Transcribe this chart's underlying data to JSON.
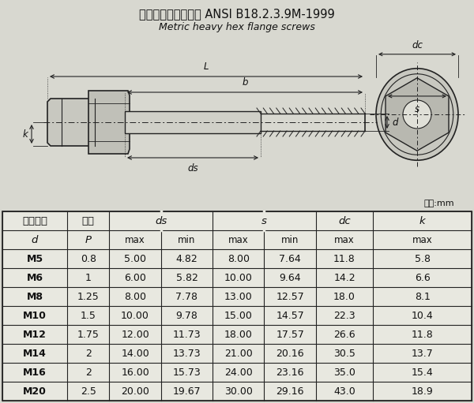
{
  "title_zh": "重型六角头法兰螺栓 ANSI B18.2.3.9M-1999",
  "title_en": "Metric heavy hex flange screws",
  "unit_label": "单位:mm",
  "bg_color": "#d8d8d0",
  "table_bg": "#e8e8e0",
  "rows": [
    [
      "M5",
      "0.8",
      "5.00",
      "4.82",
      "8.00",
      "7.64",
      "11.8",
      "5.8"
    ],
    [
      "M6",
      "1",
      "6.00",
      "5.82",
      "10.00",
      "9.64",
      "14.2",
      "6.6"
    ],
    [
      "M8",
      "1.25",
      "8.00",
      "7.78",
      "13.00",
      "12.57",
      "18.0",
      "8.1"
    ],
    [
      "M10",
      "1.5",
      "10.00",
      "9.78",
      "15.00",
      "14.57",
      "22.3",
      "10.4"
    ],
    [
      "M12",
      "1.75",
      "12.00",
      "11.73",
      "18.00",
      "17.57",
      "26.6",
      "11.8"
    ],
    [
      "M14",
      "2",
      "14.00",
      "13.73",
      "21.00",
      "20.16",
      "30.5",
      "13.7"
    ],
    [
      "M16",
      "2",
      "16.00",
      "15.73",
      "24.00",
      "23.16",
      "35.0",
      "15.4"
    ],
    [
      "M20",
      "2.5",
      "20.00",
      "19.67",
      "30.00",
      "29.16",
      "43.0",
      "18.9"
    ]
  ],
  "line_color": "#222222",
  "text_color": "#111111",
  "col_rel": [
    0.0,
    0.138,
    0.228,
    0.338,
    0.448,
    0.558,
    0.668,
    0.79,
    1.0
  ]
}
